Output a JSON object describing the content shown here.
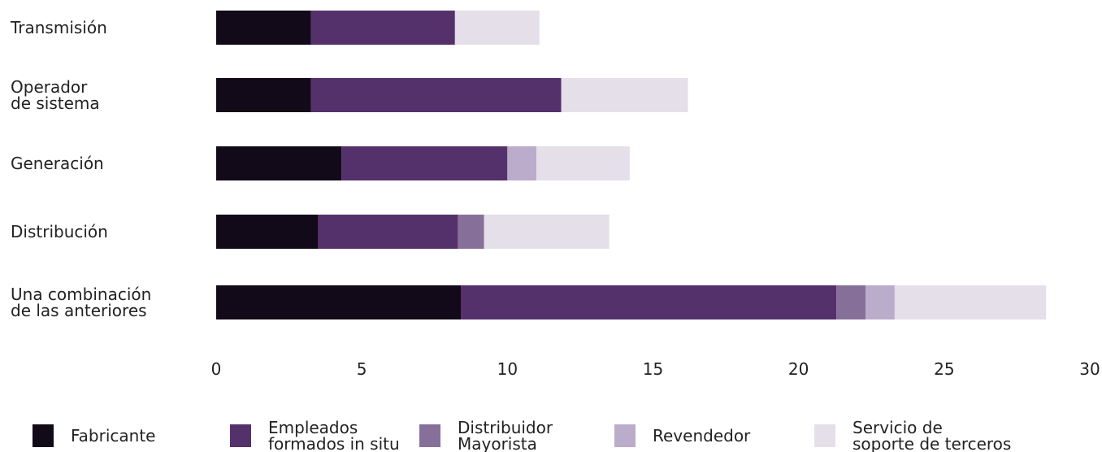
{
  "chart_data": {
    "type": "stacked-bar-horizontal",
    "categories": [
      "Transmisión",
      "Operador\nde sistema",
      "Generación",
      "Distribución",
      "Una combinación\nde las anteriores"
    ],
    "series": [
      {
        "name": "Fabricante",
        "color": "#120a18",
        "values": [
          3.25,
          3.25,
          4.3,
          3.5,
          8.4
        ]
      },
      {
        "name": "Empleados\nformados in situ",
        "color": "#55316b",
        "values": [
          4.95,
          8.6,
          5.7,
          4.8,
          12.9
        ]
      },
      {
        "name": "Distribuidor\nMayorista",
        "color": "#86709a",
        "values": [
          0,
          0,
          0,
          0.9,
          1.0
        ]
      },
      {
        "name": "Revendedor",
        "color": "#bcaccb",
        "values": [
          0,
          0,
          1.0,
          0,
          1.0
        ]
      },
      {
        "name": "Servicio de\nsoporte de terceros",
        "color": "#e4dfe9",
        "values": [
          2.9,
          4.35,
          3.2,
          4.3,
          5.2
        ]
      }
    ],
    "xlim": [
      0,
      30
    ],
    "xticks": [
      0,
      5,
      10,
      15,
      20,
      25,
      30
    ]
  }
}
